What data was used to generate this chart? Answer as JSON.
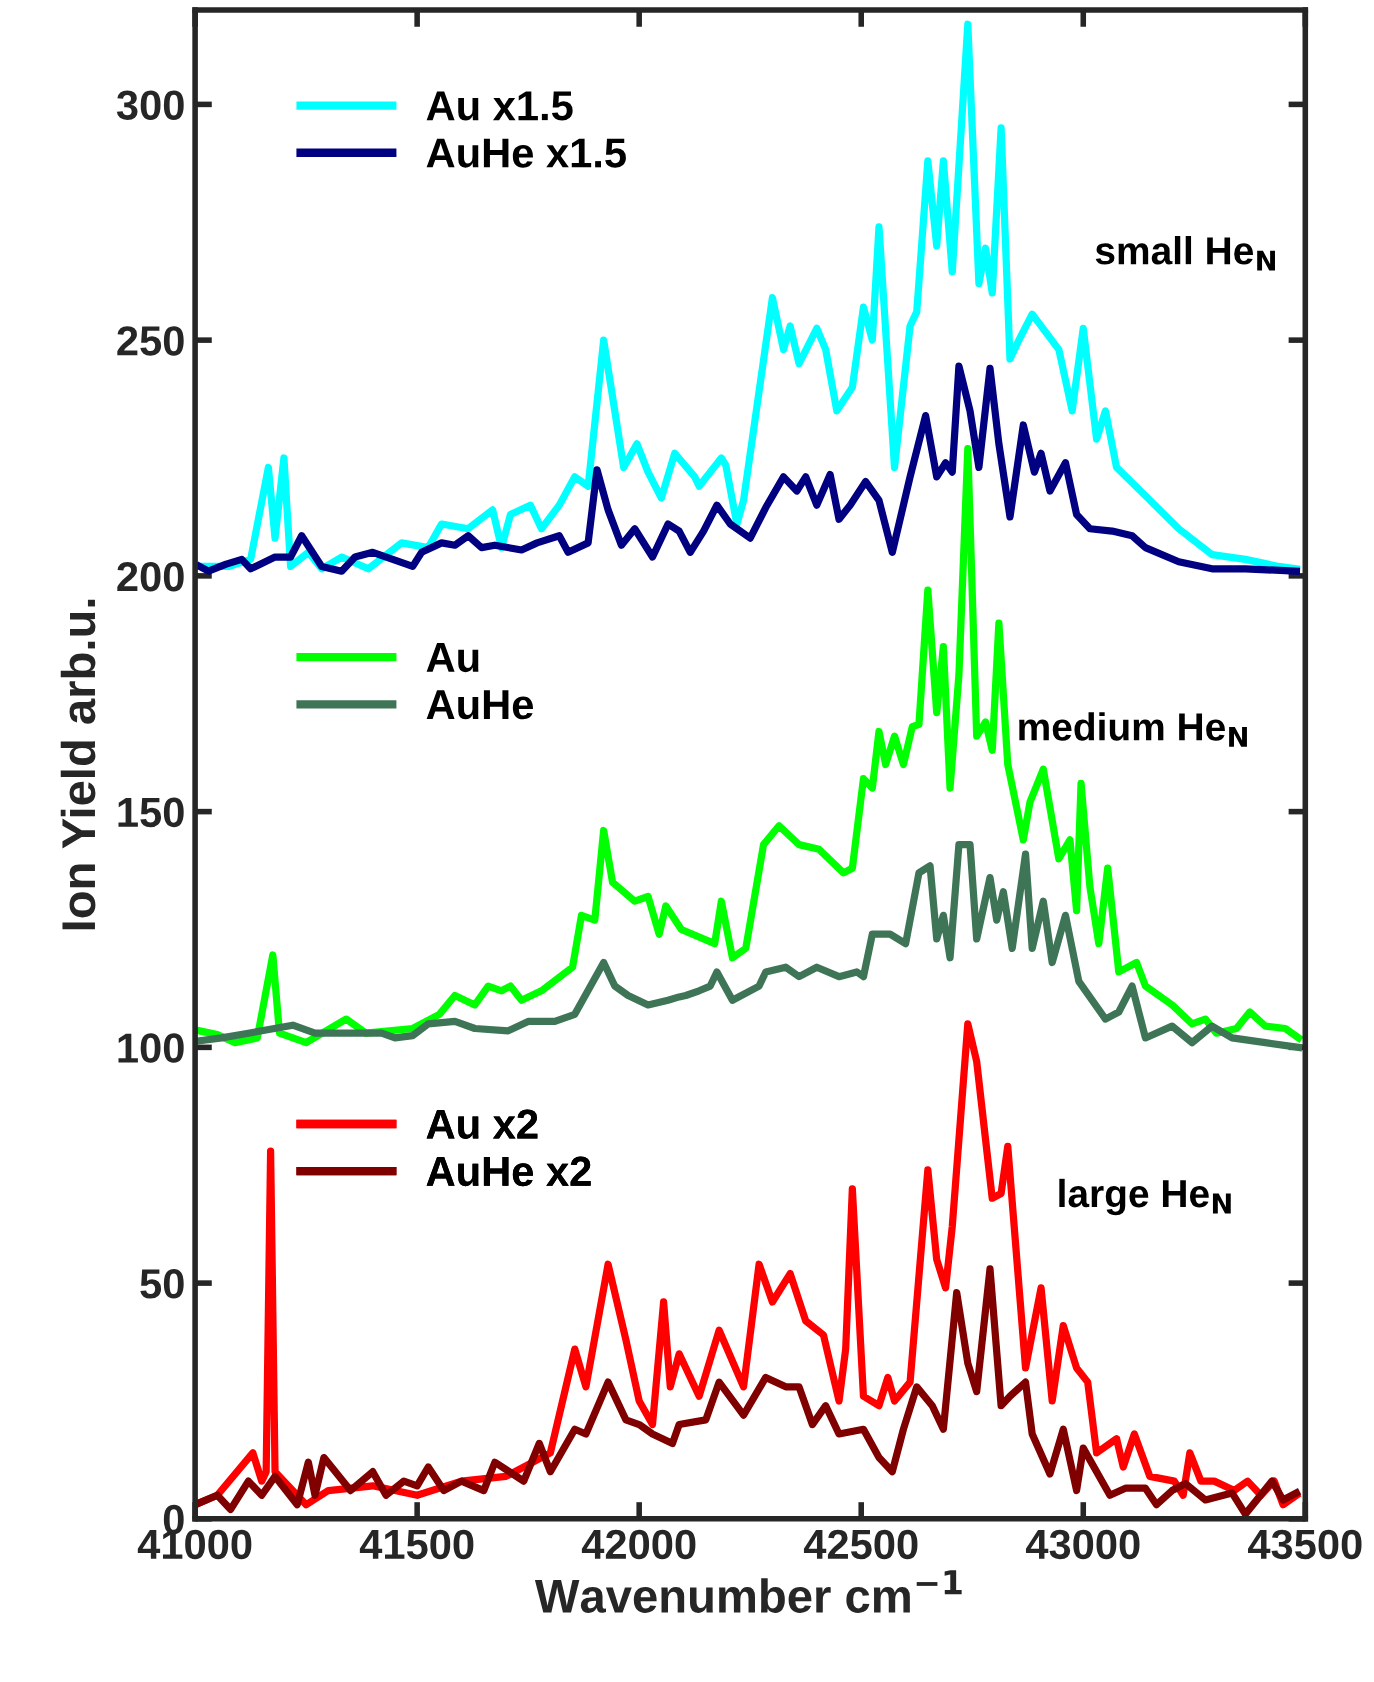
{
  "chart_data": {
    "type": "line",
    "xlabel": "Wavenumber cm$^{−1}$",
    "ylabel": "Ion Yield arb.u.",
    "xlim": [
      41000,
      43500
    ],
    "xticks": [
      41000,
      41500,
      42000,
      42500,
      43000,
      43500
    ],
    "ylim": [
      0,
      320
    ],
    "yticks": [
      0,
      50,
      100,
      150,
      200,
      250,
      300
    ],
    "grid": false,
    "legend": "top left",
    "line_style": "solid",
    "marker": "none",
    "annotations": [
      "small He$_{N}$",
      "medium He$_{N}$",
      "large He$_{N}$"
    ],
    "series": [
      {
        "name": "Au x1.5",
        "color": "#00ffff",
        "x": [
          41010,
          41075,
          41125,
          41165,
          41180,
          41200,
          41215,
          41255,
          41285,
          41330,
          41390,
          41465,
          41525,
          41555,
          41615,
          41670,
          41690,
          41710,
          41755,
          41780,
          41820,
          41855,
          41885,
          41920,
          41965,
          41995,
          42020,
          42050,
          42080,
          42125,
          42135,
          42185,
          42195,
          42220,
          42235,
          42300,
          42325,
          42340,
          42360,
          42400,
          42420,
          42445,
          42480,
          42505,
          42525,
          42540,
          42575,
          42610,
          42625,
          42650,
          42670,
          42685,
          42705,
          42740,
          42765,
          42780,
          42795,
          42815,
          42835,
          42855,
          42885,
          42945,
          42975,
          43000,
          43030,
          43050,
          43075,
          43140,
          43215,
          43290,
          43365,
          43440,
          43480
        ],
        "values": [
          202,
          202,
          203.5,
          223,
          208,
          225,
          202,
          205,
          201.5,
          204,
          201.5,
          207,
          206,
          211,
          210,
          214,
          206,
          213,
          215,
          210,
          215,
          221,
          219,
          250,
          223,
          228,
          222,
          216.5,
          226,
          221,
          219,
          225,
          223.5,
          211,
          216,
          259,
          248,
          253,
          245,
          252.5,
          248,
          235,
          240,
          257,
          250,
          274,
          223,
          253,
          256,
          288,
          270,
          288,
          264.5,
          317,
          262,
          269.5,
          260,
          295,
          246,
          250,
          255.5,
          248,
          235,
          252.5,
          229,
          235,
          223,
          217,
          210,
          204.5,
          203.5,
          202,
          201.5
        ]
      },
      {
        "name": "AuHe x1.5",
        "color": "#000080",
        "x": [
          41010,
          41030,
          41070,
          41105,
          41125,
          41180,
          41215,
          41240,
          41285,
          41330,
          41360,
          41400,
          41490,
          41510,
          41555,
          41585,
          41615,
          41645,
          41675,
          41735,
          41770,
          41820,
          41840,
          41885,
          41905,
          41930,
          41960,
          41990,
          42030,
          42065,
          42090,
          42115,
          42145,
          42175,
          42205,
          42250,
          42285,
          42325,
          42355,
          42375,
          42400,
          42430,
          42450,
          42475,
          42510,
          42540,
          42570,
          42610,
          42645,
          42670,
          42690,
          42705,
          42720,
          42745,
          42765,
          42790,
          42810,
          42835,
          42865,
          42890,
          42905,
          42925,
          42960,
          42985,
          43015,
          43065,
          43110,
          43140,
          43215,
          43290,
          43365,
          43480
        ],
        "values": [
          202,
          201,
          202.5,
          203.5,
          201.5,
          204,
          204,
          208.5,
          202,
          201,
          204,
          205,
          202,
          205,
          207,
          206.5,
          208.5,
          206,
          206.5,
          205.5,
          207,
          208.5,
          205,
          207,
          222.5,
          214,
          206.5,
          210,
          204,
          211,
          209.5,
          205,
          209.5,
          215,
          211,
          208,
          214.5,
          221,
          218,
          221,
          215,
          221.5,
          212,
          215,
          220,
          216,
          205,
          221,
          234,
          221,
          224,
          222,
          244.5,
          235,
          223,
          244,
          228,
          212.5,
          232,
          222,
          226,
          218,
          224,
          213,
          210,
          209.5,
          208.5,
          206,
          203,
          201.5,
          201.5,
          201
        ]
      },
      {
        "name": "Au",
        "color": "#00ff00",
        "x": [
          41010,
          41050,
          41090,
          41140,
          41175,
          41190,
          41250,
          41340,
          41385,
          41490,
          41550,
          41585,
          41630,
          41660,
          41690,
          41710,
          41735,
          41780,
          41850,
          41870,
          41900,
          41920,
          41940,
          41990,
          42020,
          42045,
          42060,
          42095,
          42170,
          42185,
          42210,
          42240,
          42280,
          42315,
          42360,
          42405,
          42460,
          42480,
          42505,
          42525,
          42540,
          42555,
          42575,
          42595,
          42615,
          42630,
          42650,
          42670,
          42685,
          42700,
          42720,
          42740,
          42760,
          42780,
          42795,
          42810,
          42830,
          42865,
          42880,
          42910,
          42945,
          42970,
          42985,
          42995,
          43015,
          43035,
          43055,
          43080,
          43120,
          43140,
          43200,
          43245,
          43275,
          43300,
          43345,
          43375,
          43410,
          43455,
          43485
        ],
        "values": [
          103.5,
          102.7,
          101,
          102,
          119.6,
          103,
          101,
          106,
          103,
          104,
          107,
          111,
          109,
          113,
          112,
          113,
          110,
          112,
          117,
          128,
          127,
          146,
          135,
          131,
          132,
          124,
          130,
          125,
          122,
          131,
          119,
          121,
          143,
          147,
          143,
          142,
          137,
          138,
          157,
          155,
          167,
          160,
          166,
          160,
          168,
          168.5,
          197,
          171,
          185,
          155,
          179,
          227,
          166,
          169,
          163,
          190,
          160,
          144,
          152,
          159,
          140,
          144,
          129,
          156,
          134,
          122,
          138,
          116,
          118,
          113,
          109,
          105,
          106,
          103,
          104,
          107.5,
          104.5,
          104,
          102
        ]
      },
      {
        "name": "AuHe",
        "color": "#3f7557",
        "x": [
          41010,
          41060,
          41120,
          41220,
          41270,
          41420,
          41450,
          41490,
          41525,
          41585,
          41630,
          41705,
          41750,
          41810,
          41855,
          41920,
          41945,
          41975,
          42020,
          42065,
          42090,
          42105,
          42135,
          42160,
          42175,
          42210,
          42270,
          42285,
          42330,
          42360,
          42400,
          42450,
          42490,
          42505,
          42525,
          42565,
          42600,
          42630,
          42655,
          42670,
          42685,
          42700,
          42720,
          42745,
          42760,
          42790,
          42805,
          42820,
          42840,
          42870,
          42885,
          42910,
          42930,
          42960,
          42990,
          43050,
          43080,
          43110,
          43140,
          43200,
          43245,
          43290,
          43335,
          43410,
          43485
        ],
        "values": [
          101.4,
          102,
          103,
          104.7,
          103,
          103,
          102,
          102.5,
          105,
          105.5,
          104,
          103.5,
          105.5,
          105.5,
          107,
          118,
          113,
          111,
          109,
          110,
          110.7,
          111,
          112,
          113,
          116,
          110,
          113,
          116,
          117,
          115,
          117,
          115,
          116,
          115,
          124,
          124,
          122,
          137,
          138.5,
          123,
          128,
          119,
          143,
          143,
          123,
          136,
          127,
          133,
          121,
          141,
          121,
          131,
          118,
          128,
          114,
          106,
          107.5,
          113,
          102,
          104.5,
          101,
          104.5,
          102,
          101,
          100
        ]
      },
      {
        "name": "Au x2",
        "color": "#ff0000",
        "x": [
          41000,
          41050,
          41130,
          41150,
          41160,
          41170,
          41180,
          41200,
          41250,
          41300,
          41400,
          41500,
          41600,
          41700,
          41800,
          41855,
          41880,
          41930,
          41970,
          42000,
          42030,
          42055,
          42070,
          42090,
          42135,
          42180,
          42235,
          42270,
          42300,
          42340,
          42375,
          42415,
          42450,
          42465,
          42480,
          42505,
          42540,
          42560,
          42575,
          42610,
          42650,
          42670,
          42690,
          42705,
          42740,
          42760,
          42795,
          42815,
          42830,
          42870,
          42905,
          42930,
          42955,
          42985,
          43010,
          43030,
          43075,
          43090,
          43115,
          43150,
          43205,
          43225,
          43240,
          43265,
          43295,
          43340,
          43370,
          43400,
          43430,
          43450,
          43480
        ],
        "values": [
          3,
          5,
          14,
          8,
          10,
          78,
          10,
          8,
          3,
          6,
          7,
          5,
          8,
          9,
          14,
          36,
          28,
          54,
          38,
          25,
          20,
          46,
          28,
          35,
          26,
          40,
          28,
          54,
          46,
          52,
          42,
          39,
          25,
          36,
          70,
          26,
          24,
          30,
          25,
          29,
          74,
          55,
          49,
          62,
          105,
          97,
          68,
          69,
          79,
          32,
          49,
          25,
          41,
          32,
          29,
          14,
          17,
          11,
          18,
          9,
          8,
          5,
          14,
          8,
          8,
          6,
          8,
          5,
          8,
          3,
          5
        ]
      },
      {
        "name": "AuHe x2",
        "color": "#800000",
        "x": [
          41000,
          41050,
          41080,
          41120,
          41150,
          41180,
          41230,
          41255,
          41270,
          41290,
          41350,
          41400,
          41430,
          41470,
          41500,
          41525,
          41560,
          41600,
          41650,
          41675,
          41740,
          41775,
          41800,
          41855,
          41880,
          41930,
          41970,
          42000,
          42030,
          42075,
          42090,
          42150,
          42180,
          42235,
          42285,
          42330,
          42360,
          42390,
          42420,
          42450,
          42505,
          42540,
          42570,
          42595,
          42625,
          42660,
          42685,
          42715,
          42740,
          42760,
          42790,
          42815,
          42835,
          42870,
          42885,
          42925,
          42955,
          42985,
          43000,
          43060,
          43095,
          43140,
          43165,
          43200,
          43230,
          43275,
          43335,
          43365,
          43395,
          43425,
          43450,
          43480
        ],
        "values": [
          3,
          5,
          2,
          8,
          5,
          9,
          3,
          12,
          5,
          13,
          6,
          10,
          5,
          8,
          7,
          11,
          6,
          8,
          6,
          12,
          8,
          16,
          10,
          19,
          18,
          29,
          21,
          20,
          18,
          16,
          20,
          21,
          29,
          22,
          30,
          28,
          28,
          20,
          24,
          18,
          19,
          13,
          10,
          19,
          28,
          24,
          19,
          48,
          33,
          27,
          53,
          24,
          26,
          29,
          18,
          9.5,
          19,
          6,
          15,
          5,
          6.5,
          6.5,
          3,
          6,
          7.5,
          4,
          5.5,
          1,
          4.5,
          8,
          4,
          5.5
        ]
      }
    ]
  }
}
